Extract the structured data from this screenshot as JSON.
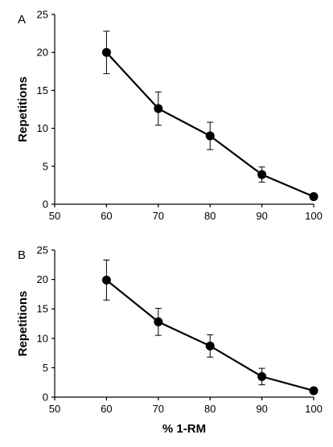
{
  "chart_data": [
    {
      "panel": "A",
      "type": "line",
      "xlabel": "",
      "ylabel": "Repetitions",
      "xlim": [
        50,
        100
      ],
      "ylim": [
        0,
        25
      ],
      "x_ticks": [
        50,
        60,
        70,
        80,
        90,
        100
      ],
      "y_ticks": [
        0,
        5,
        10,
        15,
        20,
        25
      ],
      "grid": false,
      "series": [
        {
          "x": [
            60,
            70,
            80,
            90,
            100
          ],
          "y": [
            20.0,
            12.6,
            9.0,
            3.9,
            1.0
          ],
          "error": [
            2.8,
            2.2,
            1.8,
            1.0,
            0
          ]
        }
      ]
    },
    {
      "panel": "B",
      "type": "line",
      "xlabel": "% 1-RM",
      "ylabel": "Repetitions",
      "xlim": [
        50,
        100
      ],
      "ylim": [
        0,
        25
      ],
      "x_ticks": [
        50,
        60,
        70,
        80,
        90,
        100
      ],
      "y_ticks": [
        0,
        5,
        10,
        15,
        20,
        25
      ],
      "grid": false,
      "series": [
        {
          "x": [
            60,
            70,
            80,
            90,
            100
          ],
          "y": [
            19.9,
            12.8,
            8.7,
            3.5,
            1.1
          ],
          "error": [
            3.4,
            2.3,
            1.9,
            1.4,
            0
          ]
        }
      ]
    }
  ]
}
